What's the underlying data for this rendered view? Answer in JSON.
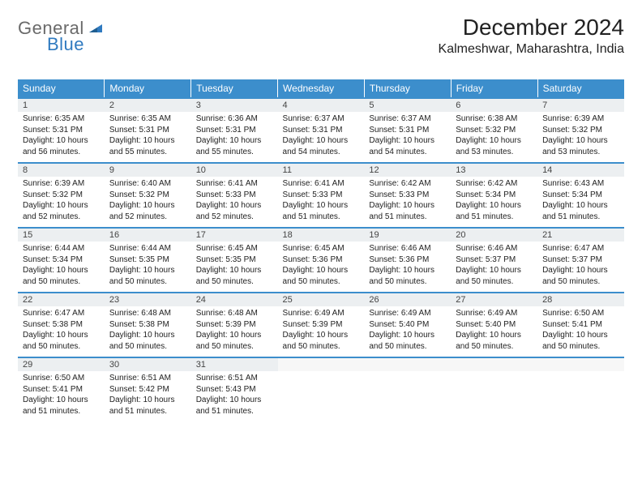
{
  "logo": {
    "general": "General",
    "blue": "Blue"
  },
  "title": "December 2024",
  "location": "Kalmeshwar, Maharashtra, India",
  "weekdays": [
    "Sunday",
    "Monday",
    "Tuesday",
    "Wednesday",
    "Thursday",
    "Friday",
    "Saturday"
  ],
  "colors": {
    "header_bg": "#3c8ecc",
    "header_text": "#ffffff",
    "daynum_bg": "#eceff1",
    "row_border": "#3c8ecc",
    "logo_gray": "#6a6a6a",
    "logo_blue": "#2f7ac0"
  },
  "calendar": {
    "type": "table",
    "columns": 7,
    "rows": 5,
    "cells": [
      [
        {
          "day": "1",
          "sunrise": "Sunrise: 6:35 AM",
          "sunset": "Sunset: 5:31 PM",
          "daylight": "Daylight: 10 hours and 56 minutes."
        },
        {
          "day": "2",
          "sunrise": "Sunrise: 6:35 AM",
          "sunset": "Sunset: 5:31 PM",
          "daylight": "Daylight: 10 hours and 55 minutes."
        },
        {
          "day": "3",
          "sunrise": "Sunrise: 6:36 AM",
          "sunset": "Sunset: 5:31 PM",
          "daylight": "Daylight: 10 hours and 55 minutes."
        },
        {
          "day": "4",
          "sunrise": "Sunrise: 6:37 AM",
          "sunset": "Sunset: 5:31 PM",
          "daylight": "Daylight: 10 hours and 54 minutes."
        },
        {
          "day": "5",
          "sunrise": "Sunrise: 6:37 AM",
          "sunset": "Sunset: 5:31 PM",
          "daylight": "Daylight: 10 hours and 54 minutes."
        },
        {
          "day": "6",
          "sunrise": "Sunrise: 6:38 AM",
          "sunset": "Sunset: 5:32 PM",
          "daylight": "Daylight: 10 hours and 53 minutes."
        },
        {
          "day": "7",
          "sunrise": "Sunrise: 6:39 AM",
          "sunset": "Sunset: 5:32 PM",
          "daylight": "Daylight: 10 hours and 53 minutes."
        }
      ],
      [
        {
          "day": "8",
          "sunrise": "Sunrise: 6:39 AM",
          "sunset": "Sunset: 5:32 PM",
          "daylight": "Daylight: 10 hours and 52 minutes."
        },
        {
          "day": "9",
          "sunrise": "Sunrise: 6:40 AM",
          "sunset": "Sunset: 5:32 PM",
          "daylight": "Daylight: 10 hours and 52 minutes."
        },
        {
          "day": "10",
          "sunrise": "Sunrise: 6:41 AM",
          "sunset": "Sunset: 5:33 PM",
          "daylight": "Daylight: 10 hours and 52 minutes."
        },
        {
          "day": "11",
          "sunrise": "Sunrise: 6:41 AM",
          "sunset": "Sunset: 5:33 PM",
          "daylight": "Daylight: 10 hours and 51 minutes."
        },
        {
          "day": "12",
          "sunrise": "Sunrise: 6:42 AM",
          "sunset": "Sunset: 5:33 PM",
          "daylight": "Daylight: 10 hours and 51 minutes."
        },
        {
          "day": "13",
          "sunrise": "Sunrise: 6:42 AM",
          "sunset": "Sunset: 5:34 PM",
          "daylight": "Daylight: 10 hours and 51 minutes."
        },
        {
          "day": "14",
          "sunrise": "Sunrise: 6:43 AM",
          "sunset": "Sunset: 5:34 PM",
          "daylight": "Daylight: 10 hours and 51 minutes."
        }
      ],
      [
        {
          "day": "15",
          "sunrise": "Sunrise: 6:44 AM",
          "sunset": "Sunset: 5:34 PM",
          "daylight": "Daylight: 10 hours and 50 minutes."
        },
        {
          "day": "16",
          "sunrise": "Sunrise: 6:44 AM",
          "sunset": "Sunset: 5:35 PM",
          "daylight": "Daylight: 10 hours and 50 minutes."
        },
        {
          "day": "17",
          "sunrise": "Sunrise: 6:45 AM",
          "sunset": "Sunset: 5:35 PM",
          "daylight": "Daylight: 10 hours and 50 minutes."
        },
        {
          "day": "18",
          "sunrise": "Sunrise: 6:45 AM",
          "sunset": "Sunset: 5:36 PM",
          "daylight": "Daylight: 10 hours and 50 minutes."
        },
        {
          "day": "19",
          "sunrise": "Sunrise: 6:46 AM",
          "sunset": "Sunset: 5:36 PM",
          "daylight": "Daylight: 10 hours and 50 minutes."
        },
        {
          "day": "20",
          "sunrise": "Sunrise: 6:46 AM",
          "sunset": "Sunset: 5:37 PM",
          "daylight": "Daylight: 10 hours and 50 minutes."
        },
        {
          "day": "21",
          "sunrise": "Sunrise: 6:47 AM",
          "sunset": "Sunset: 5:37 PM",
          "daylight": "Daylight: 10 hours and 50 minutes."
        }
      ],
      [
        {
          "day": "22",
          "sunrise": "Sunrise: 6:47 AM",
          "sunset": "Sunset: 5:38 PM",
          "daylight": "Daylight: 10 hours and 50 minutes."
        },
        {
          "day": "23",
          "sunrise": "Sunrise: 6:48 AM",
          "sunset": "Sunset: 5:38 PM",
          "daylight": "Daylight: 10 hours and 50 minutes."
        },
        {
          "day": "24",
          "sunrise": "Sunrise: 6:48 AM",
          "sunset": "Sunset: 5:39 PM",
          "daylight": "Daylight: 10 hours and 50 minutes."
        },
        {
          "day": "25",
          "sunrise": "Sunrise: 6:49 AM",
          "sunset": "Sunset: 5:39 PM",
          "daylight": "Daylight: 10 hours and 50 minutes."
        },
        {
          "day": "26",
          "sunrise": "Sunrise: 6:49 AM",
          "sunset": "Sunset: 5:40 PM",
          "daylight": "Daylight: 10 hours and 50 minutes."
        },
        {
          "day": "27",
          "sunrise": "Sunrise: 6:49 AM",
          "sunset": "Sunset: 5:40 PM",
          "daylight": "Daylight: 10 hours and 50 minutes."
        },
        {
          "day": "28",
          "sunrise": "Sunrise: 6:50 AM",
          "sunset": "Sunset: 5:41 PM",
          "daylight": "Daylight: 10 hours and 50 minutes."
        }
      ],
      [
        {
          "day": "29",
          "sunrise": "Sunrise: 6:50 AM",
          "sunset": "Sunset: 5:41 PM",
          "daylight": "Daylight: 10 hours and 51 minutes."
        },
        {
          "day": "30",
          "sunrise": "Sunrise: 6:51 AM",
          "sunset": "Sunset: 5:42 PM",
          "daylight": "Daylight: 10 hours and 51 minutes."
        },
        {
          "day": "31",
          "sunrise": "Sunrise: 6:51 AM",
          "sunset": "Sunset: 5:43 PM",
          "daylight": "Daylight: 10 hours and 51 minutes."
        },
        null,
        null,
        null,
        null
      ]
    ]
  }
}
